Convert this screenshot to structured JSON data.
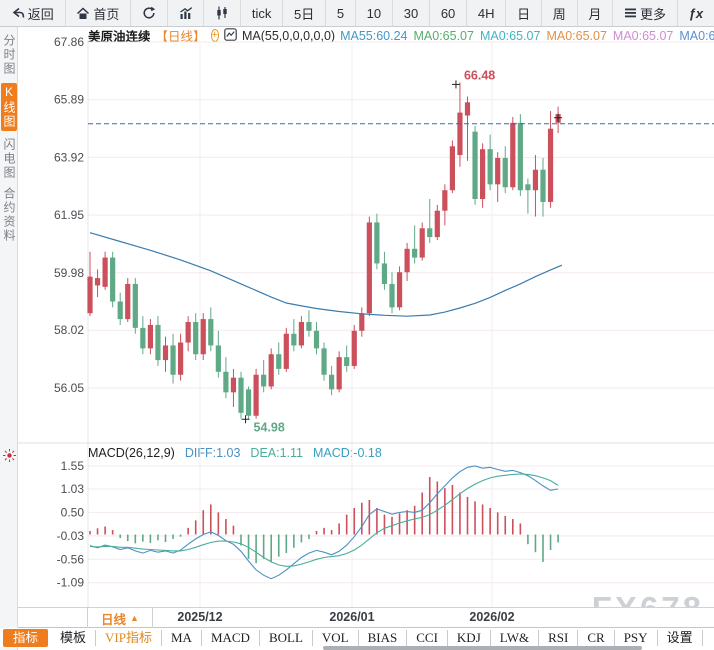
{
  "toolbar": {
    "items": [
      {
        "name": "back",
        "icon": "back-arrow",
        "label": "返回"
      },
      {
        "name": "home",
        "icon": "home",
        "label": "首页"
      },
      {
        "name": "refresh",
        "icon": "refresh",
        "label": ""
      },
      {
        "name": "volume-chart",
        "icon": "bar-chart",
        "label": ""
      },
      {
        "name": "candle-chart",
        "icon": "candlestick",
        "label": ""
      },
      {
        "name": "tick",
        "icon": "",
        "label": "tick"
      },
      {
        "name": "5d",
        "icon": "",
        "label": "5日"
      },
      {
        "name": "m5",
        "icon": "",
        "label": "5"
      },
      {
        "name": "m10",
        "icon": "",
        "label": "10"
      },
      {
        "name": "m30",
        "icon": "",
        "label": "30"
      },
      {
        "name": "m60",
        "icon": "",
        "label": "60"
      },
      {
        "name": "h4",
        "icon": "",
        "label": "4H"
      },
      {
        "name": "day",
        "icon": "",
        "label": "日"
      },
      {
        "name": "week",
        "icon": "",
        "label": "周"
      },
      {
        "name": "month",
        "icon": "",
        "label": "月"
      },
      {
        "name": "more",
        "icon": "menu",
        "label": "更多"
      },
      {
        "name": "fx",
        "icon": "",
        "label": "ƒx"
      }
    ]
  },
  "sidebar": {
    "items": [
      {
        "label": "分时图",
        "active": false
      },
      {
        "label": "K线图",
        "active": true
      },
      {
        "label": "闪电图",
        "active": false
      },
      {
        "label": "合约资料",
        "active": false
      }
    ]
  },
  "chart_header": {
    "symbol": "美原油连续",
    "period": "【日线】",
    "add_icon": "+",
    "ma_formula": "MA(55,0,0,0,0,0)",
    "ma_values": [
      {
        "label": "MA55:60.24",
        "color": "#4596c8"
      },
      {
        "label": "MA0:65.07",
        "color": "#56ad6d"
      },
      {
        "label": "MA0:65.07",
        "color": "#3fb4c4"
      },
      {
        "label": "MA0:65.07",
        "color": "#de9147"
      },
      {
        "label": "MA0:65.07",
        "color": "#cf8bd3"
      },
      {
        "label": "MA0:6",
        "color": "#5b8fd0"
      }
    ]
  },
  "macd_header": {
    "formula": "MACD(26,12,9)",
    "diff_label": "DIFF:1.03",
    "dea_label": "DEA:1.11",
    "macd_label": "MACD:-0.18"
  },
  "bottom": {
    "period_label": "日线",
    "period_arrow": "▲",
    "tabs": [
      {
        "label": "指标",
        "style": "active"
      },
      {
        "label": "模板",
        "style": "normal"
      },
      {
        "label": "VIP指标",
        "style": "vip"
      },
      {
        "label": "MA",
        "style": "normal"
      },
      {
        "label": "MACD",
        "style": "normal"
      },
      {
        "label": "BOLL",
        "style": "normal"
      },
      {
        "label": "VOL",
        "style": "normal"
      },
      {
        "label": "BIAS",
        "style": "normal"
      },
      {
        "label": "CCI",
        "style": "normal"
      },
      {
        "label": "KDJ",
        "style": "normal"
      },
      {
        "label": "LW&",
        "style": "normal"
      },
      {
        "label": "RSI",
        "style": "normal"
      },
      {
        "label": "CR",
        "style": "normal"
      },
      {
        "label": "PSY",
        "style": "normal"
      },
      {
        "label": "设置",
        "style": "normal"
      }
    ]
  },
  "watermark": "FX678",
  "colors": {
    "up": "#cc4f5c",
    "down": "#5fa986",
    "ma55_line": "#3b7cae",
    "dashed_line": "#2e6db0",
    "accent_orange": "#ef7d1d",
    "grid": "#f3e9eb"
  },
  "chart_data": [
    {
      "type": "candlestick",
      "title": "美原油连续【日线】",
      "y_ticks": [
        "67.86",
        "65.89",
        "63.92",
        "61.95",
        "59.98",
        "58.02",
        "56.05"
      ],
      "y_tick_values": [
        67.86,
        65.89,
        63.92,
        61.95,
        59.98,
        58.02,
        56.05
      ],
      "x_labels": [
        "2025/12",
        "2026/01",
        "2026/02"
      ],
      "dashed_price": 65.07,
      "high_annotation": {
        "label": "66.48",
        "value": 66.48,
        "index": 49
      },
      "low_annotation": {
        "label": "54.98",
        "value": 54.98,
        "index": 21
      },
      "ma55": [
        [
          0,
          61.35
        ],
        [
          4,
          61.05
        ],
        [
          8,
          60.75
        ],
        [
          12,
          60.42
        ],
        [
          16,
          60.05
        ],
        [
          20,
          59.6
        ],
        [
          24,
          59.15
        ],
        [
          26,
          58.95
        ],
        [
          28,
          58.85
        ],
        [
          30,
          58.76
        ],
        [
          33,
          58.66
        ],
        [
          36,
          58.58
        ],
        [
          39,
          58.53
        ],
        [
          42,
          58.5
        ],
        [
          45,
          58.54
        ],
        [
          47,
          58.64
        ],
        [
          49,
          58.78
        ],
        [
          51,
          58.94
        ],
        [
          53,
          59.14
        ],
        [
          55,
          59.38
        ],
        [
          57,
          59.6
        ],
        [
          59,
          59.85
        ],
        [
          61,
          60.08
        ],
        [
          62.5,
          60.24
        ]
      ],
      "candles": [
        [
          58.6,
          60.7,
          58.5,
          59.85
        ],
        [
          59.55,
          60.1,
          59.15,
          59.8
        ],
        [
          59.5,
          60.7,
          59.4,
          60.5
        ],
        [
          60.5,
          60.7,
          58.8,
          59.0
        ],
        [
          59.0,
          59.3,
          58.2,
          58.4
        ],
        [
          58.4,
          59.8,
          58.3,
          59.6
        ],
        [
          59.6,
          59.8,
          57.9,
          58.1
        ],
        [
          58.1,
          58.5,
          57.2,
          57.4
        ],
        [
          57.4,
          58.4,
          57.2,
          58.2
        ],
        [
          58.2,
          58.5,
          56.8,
          57.0
        ],
        [
          57.0,
          57.8,
          56.6,
          57.5
        ],
        [
          57.5,
          57.9,
          56.2,
          56.5
        ],
        [
          56.5,
          57.9,
          56.3,
          57.6
        ],
        [
          57.6,
          58.5,
          57.3,
          58.3
        ],
        [
          58.3,
          58.6,
          57.0,
          57.2
        ],
        [
          57.2,
          58.6,
          57.0,
          58.4
        ],
        [
          58.4,
          58.8,
          57.3,
          57.5
        ],
        [
          57.5,
          58.0,
          56.4,
          56.6
        ],
        [
          56.6,
          57.1,
          55.7,
          55.9
        ],
        [
          55.9,
          56.7,
          55.4,
          56.4
        ],
        [
          56.4,
          56.6,
          55.0,
          55.2
        ],
        [
          56.0,
          56.1,
          54.98,
          55.1
        ],
        [
          55.1,
          56.7,
          55.0,
          56.5
        ],
        [
          56.5,
          57.0,
          55.9,
          56.1
        ],
        [
          56.1,
          57.4,
          56.0,
          57.2
        ],
        [
          57.2,
          57.6,
          56.5,
          56.7
        ],
        [
          56.7,
          58.1,
          56.6,
          57.9
        ],
        [
          57.9,
          58.4,
          57.3,
          57.5
        ],
        [
          57.5,
          58.5,
          57.4,
          58.3
        ],
        [
          58.3,
          58.7,
          57.8,
          58.0
        ],
        [
          58.0,
          58.3,
          57.2,
          57.4
        ],
        [
          57.4,
          57.6,
          56.3,
          56.5
        ],
        [
          56.5,
          56.8,
          55.8,
          56.0
        ],
        [
          56.0,
          57.3,
          55.9,
          57.1
        ],
        [
          57.1,
          57.5,
          56.6,
          56.8
        ],
        [
          56.8,
          58.2,
          56.7,
          58.0
        ],
        [
          58.0,
          58.8,
          57.8,
          58.6
        ],
        [
          58.6,
          61.9,
          58.5,
          61.7
        ],
        [
          61.7,
          62.0,
          60.1,
          60.3
        ],
        [
          60.3,
          60.7,
          59.4,
          59.6
        ],
        [
          59.6,
          60.0,
          58.6,
          58.8
        ],
        [
          58.8,
          60.2,
          58.7,
          60.0
        ],
        [
          60.0,
          61.0,
          59.7,
          60.8
        ],
        [
          60.8,
          61.6,
          60.3,
          60.5
        ],
        [
          60.5,
          61.7,
          60.4,
          61.5
        ],
        [
          61.5,
          62.5,
          61.0,
          61.2
        ],
        [
          61.2,
          62.3,
          61.1,
          62.1
        ],
        [
          62.1,
          63.0,
          61.6,
          62.8
        ],
        [
          62.8,
          64.5,
          62.7,
          64.3
        ],
        [
          64.0,
          66.48,
          63.6,
          65.45
        ],
        [
          65.35,
          66.0,
          63.8,
          65.8
        ],
        [
          64.8,
          65.0,
          62.3,
          62.5
        ],
        [
          62.5,
          64.4,
          62.2,
          64.2
        ],
        [
          64.2,
          64.7,
          62.8,
          63.0
        ],
        [
          63.0,
          64.1,
          62.4,
          63.9
        ],
        [
          63.9,
          64.3,
          62.7,
          62.9
        ],
        [
          62.9,
          65.3,
          62.8,
          65.1
        ],
        [
          65.1,
          65.4,
          62.6,
          62.8
        ],
        [
          63.0,
          63.2,
          62.0,
          62.8
        ],
        [
          62.8,
          64.0,
          61.9,
          63.5
        ],
        [
          63.5,
          63.9,
          61.9,
          62.4
        ],
        [
          62.4,
          65.5,
          62.2,
          64.9
        ],
        [
          65.1,
          65.65,
          64.75,
          65.4
        ]
      ]
    },
    {
      "type": "macd",
      "params": "MACD(26,12,9)",
      "diff_value": 1.03,
      "dea_value": 1.11,
      "macd_value": -0.18,
      "y_ticks": [
        "1.55",
        "1.03",
        "0.50",
        "-0.03",
        "-0.56",
        "-1.09"
      ],
      "y_tick_values": [
        1.55,
        1.03,
        0.5,
        -0.03,
        -0.56,
        -1.09
      ],
      "histogram": [
        0.08,
        0.14,
        0.18,
        0.1,
        -0.08,
        -0.15,
        -0.2,
        -0.16,
        -0.19,
        -0.13,
        -0.17,
        -0.1,
        -0.05,
        0.15,
        0.32,
        0.55,
        0.68,
        0.5,
        0.35,
        0.2,
        -0.25,
        -0.55,
        -0.65,
        -0.55,
        -0.62,
        -0.5,
        -0.42,
        -0.3,
        -0.18,
        -0.1,
        0.08,
        0.15,
        0.1,
        0.25,
        0.45,
        0.6,
        0.72,
        0.78,
        0.6,
        0.45,
        0.4,
        0.48,
        0.55,
        0.65,
        0.95,
        1.3,
        1.2,
        1.05,
        1.12,
        0.95,
        0.85,
        0.75,
        0.68,
        0.6,
        0.5,
        0.42,
        0.35,
        0.25,
        -0.22,
        -0.4,
        -0.62,
        -0.35,
        -0.18
      ],
      "diff": [
        -0.25,
        -0.3,
        -0.24,
        -0.28,
        -0.34,
        -0.3,
        -0.37,
        -0.42,
        -0.36,
        -0.4,
        -0.37,
        -0.42,
        -0.35,
        -0.22,
        -0.1,
        0.0,
        0.06,
        -0.02,
        -0.14,
        -0.22,
        -0.38,
        -0.6,
        -0.8,
        -0.92,
        -1.0,
        -0.92,
        -0.8,
        -0.66,
        -0.52,
        -0.42,
        -0.36,
        -0.4,
        -0.46,
        -0.38,
        -0.24,
        -0.05,
        0.18,
        0.45,
        0.58,
        0.52,
        0.46,
        0.5,
        0.52,
        0.5,
        0.55,
        0.72,
        0.92,
        1.1,
        1.28,
        1.42,
        1.52,
        1.55,
        1.5,
        1.52,
        1.47,
        1.43,
        1.45,
        1.4,
        1.33,
        1.22,
        1.1,
        1.0,
        1.03
      ],
      "dea": [
        -0.27,
        -0.28,
        -0.27,
        -0.27,
        -0.29,
        -0.29,
        -0.31,
        -0.33,
        -0.34,
        -0.35,
        -0.36,
        -0.37,
        -0.37,
        -0.34,
        -0.29,
        -0.23,
        -0.18,
        -0.15,
        -0.15,
        -0.17,
        -0.21,
        -0.29,
        -0.4,
        -0.52,
        -0.62,
        -0.69,
        -0.72,
        -0.71,
        -0.67,
        -0.62,
        -0.56,
        -0.52,
        -0.5,
        -0.48,
        -0.43,
        -0.35,
        -0.24,
        -0.1,
        0.04,
        0.14,
        0.2,
        0.26,
        0.31,
        0.35,
        0.39,
        0.45,
        0.55,
        0.66,
        0.79,
        0.92,
        1.04,
        1.14,
        1.22,
        1.28,
        1.32,
        1.34,
        1.36,
        1.37,
        1.36,
        1.33,
        1.28,
        1.22,
        1.11
      ]
    }
  ]
}
